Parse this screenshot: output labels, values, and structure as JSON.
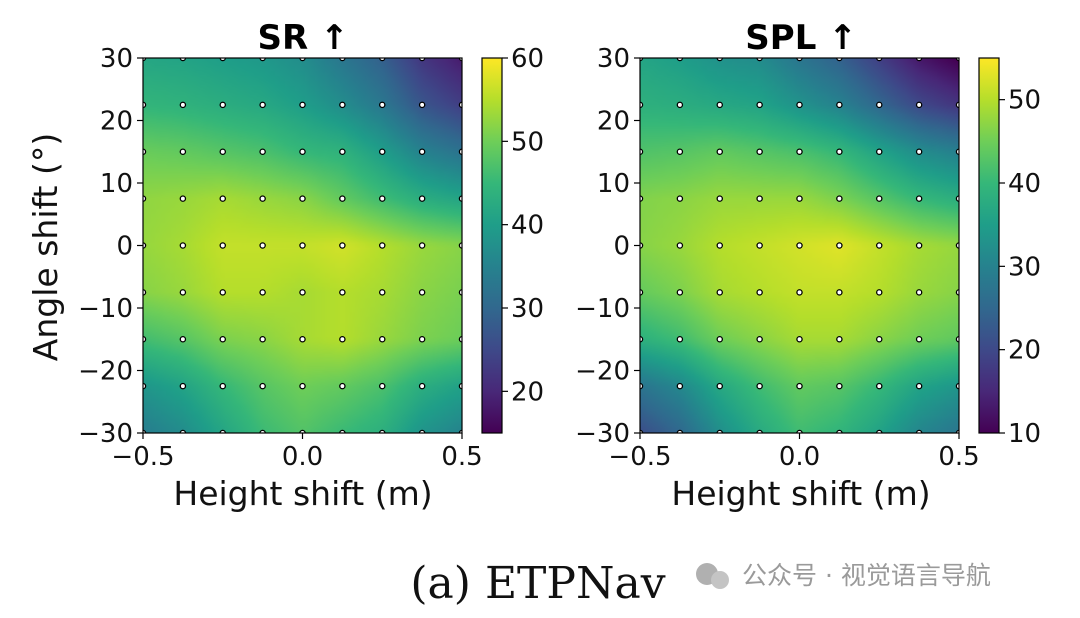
{
  "chart_data": [
    {
      "type": "heatmap",
      "title": "SR ↑",
      "xlabel": "Height shift (m)",
      "ylabel": "Angle shift (°)",
      "xlim": [
        -0.5,
        0.5
      ],
      "ylim": [
        -30,
        30
      ],
      "xticks": [
        "−0.5",
        "0.0",
        "0.5"
      ],
      "yticks": [
        "30",
        "20",
        "10",
        "0",
        "−10",
        "−20",
        "−30"
      ],
      "colorbar": {
        "min": 15,
        "max": 60,
        "ticks": [
          "60",
          "50",
          "40",
          "30",
          "20"
        ]
      },
      "sample_x": [
        -0.375,
        -0.25,
        -0.125,
        0.0,
        0.125,
        0.25,
        0.375
      ],
      "sample_y": [
        22.5,
        15,
        7.5,
        0,
        -7.5,
        -15,
        -22.5
      ],
      "values": [
        [
          44,
          43,
          42,
          40,
          37,
          33,
          27
        ],
        [
          49,
          48,
          47,
          45,
          44,
          40,
          35
        ],
        [
          53,
          54,
          53,
          52,
          49,
          46,
          43
        ],
        [
          54,
          56,
          56,
          56,
          57,
          55,
          53
        ],
        [
          53,
          55,
          55,
          54,
          55,
          54,
          52
        ],
        [
          48,
          51,
          52,
          54,
          55,
          53,
          51
        ],
        [
          41,
          45,
          48,
          50,
          49,
          47,
          43
        ]
      ]
    },
    {
      "type": "heatmap",
      "title": "SPL ↑",
      "xlabel": "Height shift (m)",
      "ylabel": "",
      "xlim": [
        -0.5,
        0.5
      ],
      "ylim": [
        -30,
        30
      ],
      "xticks": [
        "−0.5",
        "0.0",
        "0.5"
      ],
      "yticks": [
        "30",
        "20",
        "10",
        "0",
        "−10",
        "−20",
        "−30"
      ],
      "colorbar": {
        "min": 10,
        "max": 55,
        "ticks": [
          "50",
          "40",
          "30",
          "20",
          "10"
        ]
      },
      "sample_x": [
        -0.375,
        -0.25,
        -0.125,
        0.0,
        0.125,
        0.25,
        0.375
      ],
      "sample_y": [
        22.5,
        15,
        7.5,
        0,
        -7.5,
        -15,
        -22.5
      ],
      "values": [
        [
          38,
          37,
          36,
          33,
          30,
          25,
          20
        ],
        [
          43,
          44,
          43,
          42,
          40,
          36,
          32
        ],
        [
          47,
          48,
          48,
          48,
          46,
          43,
          40
        ],
        [
          48,
          50,
          51,
          52,
          53,
          51,
          49
        ],
        [
          46,
          49,
          50,
          51,
          51,
          50,
          48
        ],
        [
          41,
          45,
          47,
          49,
          49,
          47,
          45
        ],
        [
          31,
          37,
          41,
          44,
          43,
          40,
          36
        ]
      ]
    }
  ],
  "caption": "(a) ETPNav",
  "watermark": "公众号 · 视觉语言导航",
  "colors": {
    "marker_fill": "#ffffff",
    "marker_edge": "#000000",
    "text": "#111111"
  }
}
